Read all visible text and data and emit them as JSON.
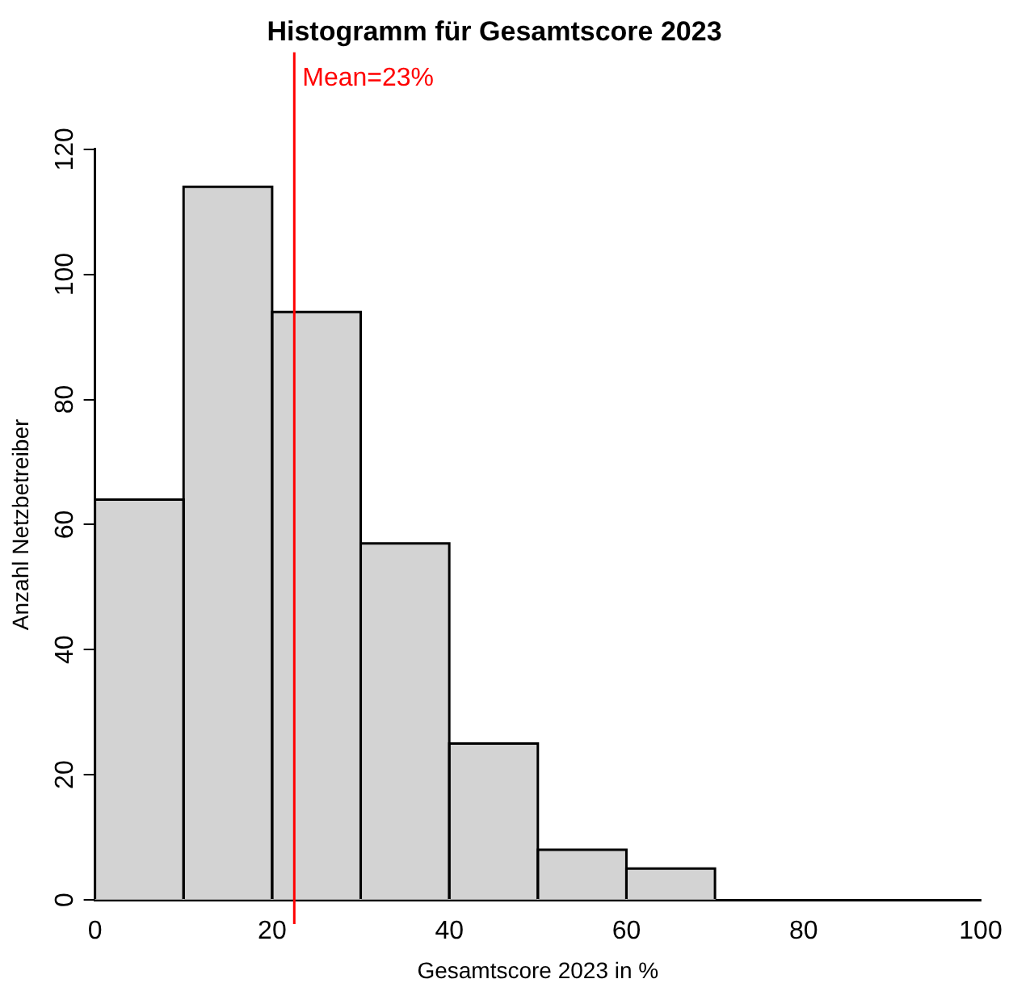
{
  "chart_data": {
    "type": "histogram",
    "title": "Histogramm für Gesamtscore 2023",
    "xlabel": "Gesamtscore 2023 in %",
    "ylabel": "Anzahl Netzbetreiber",
    "bins": [
      0,
      10,
      20,
      30,
      40,
      50,
      60,
      70
    ],
    "values": [
      64,
      114,
      94,
      57,
      25,
      8,
      5
    ],
    "color": "#d3d3d3",
    "xlim": [
      0,
      100
    ],
    "xticks": [
      0,
      20,
      40,
      60,
      80,
      100
    ],
    "ylim": [
      0,
      120
    ],
    "yticks": [
      0,
      20,
      40,
      60,
      80,
      100,
      120
    ],
    "ref_lines": [
      {
        "axis": "x",
        "value": 22.5,
        "label": "Mean=23%",
        "color": "#ff0000"
      }
    ],
    "grid": false,
    "legend": false
  }
}
